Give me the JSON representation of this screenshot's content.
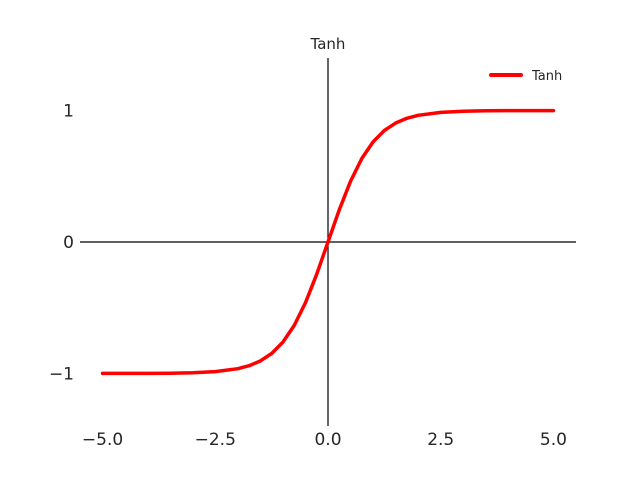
{
  "chart_data": {
    "type": "line",
    "title": "Tanh",
    "xlabel": "",
    "ylabel": "",
    "xlim": [
      -5.5,
      5.5
    ],
    "ylim": [
      -1.4,
      1.4
    ],
    "xticks": [
      -5.0,
      -2.5,
      0.0,
      2.5,
      5.0
    ],
    "xtick_labels": [
      "−5.0",
      "−2.5",
      "0.0",
      "2.5",
      "5.0"
    ],
    "yticks": [
      -1,
      0,
      1
    ],
    "ytick_labels": [
      "−1",
      "0",
      "1"
    ],
    "grid": false,
    "legend_position": "top-right",
    "series": [
      {
        "name": "Tanh",
        "color": "#ff0000",
        "x": [
          -5.0,
          -4.5,
          -4.0,
          -3.5,
          -3.0,
          -2.5,
          -2.0,
          -1.75,
          -1.5,
          -1.25,
          -1.0,
          -0.75,
          -0.5,
          -0.25,
          0.0,
          0.25,
          0.5,
          0.75,
          1.0,
          1.25,
          1.5,
          1.75,
          2.0,
          2.5,
          3.0,
          3.5,
          4.0,
          4.5,
          5.0
        ],
        "y": [
          -0.9999,
          -0.9998,
          -0.9993,
          -0.9982,
          -0.9951,
          -0.9866,
          -0.964,
          -0.9414,
          -0.9051,
          -0.8483,
          -0.7616,
          -0.6351,
          -0.4621,
          -0.2449,
          0.0,
          0.2449,
          0.4621,
          0.6351,
          0.7616,
          0.8483,
          0.9051,
          0.9414,
          0.964,
          0.9866,
          0.9951,
          0.9982,
          0.9993,
          0.9998,
          0.9999
        ]
      }
    ]
  }
}
